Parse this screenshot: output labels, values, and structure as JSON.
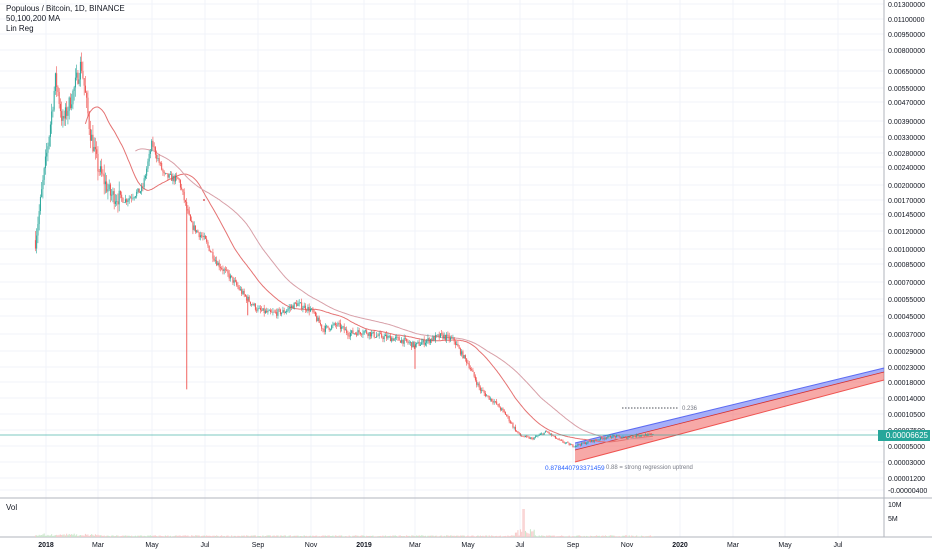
{
  "header": {
    "symbol": "Populous / Bitcoin, 1D, BINANCE",
    "indicator_ma": "50,100,200 MA",
    "indicator_linreg": "Lin Reg"
  },
  "volume_pane": {
    "label": "Vol",
    "scale_top": "10M",
    "scale_mid": "5M"
  },
  "current_price": "0.00006625",
  "colors": {
    "up": "#26a69a",
    "down": "#ef5350",
    "ma50": "#e57373",
    "ma100": "#d8a0a8",
    "reg_upper": "#5c6bf2",
    "reg_lower": "#ef5350",
    "price_tag": "#26a69a"
  },
  "chart_data": {
    "type": "candlestick",
    "title": "Populous / Bitcoin, 1D, BINANCE",
    "y_scale": "log",
    "y_ticks": [
      "0.01300000",
      "0.01100000",
      "0.00950000",
      "0.00800000",
      "0.00650000",
      "0.00550000",
      "0.00470000",
      "0.00390000",
      "0.00330000",
      "0.00280000",
      "0.00240000",
      "0.00200000",
      "0.00170000",
      "0.00145000",
      "0.00120000",
      "0.00100000",
      "0.00085000",
      "0.00070000",
      "0.00055000",
      "0.00045000",
      "0.00037000",
      "0.00029000",
      "0.00023000",
      "0.00018000",
      "0.00014000",
      "0.00010500",
      "0.00007500",
      "0.00005000",
      "0.00003000",
      "0.00001200",
      "-0.00000400"
    ],
    "x_ticks": [
      "2018",
      "Mar",
      "May",
      "Jul",
      "Sep",
      "Nov",
      "2019",
      "Mar",
      "May",
      "Jul",
      "Sep",
      "Nov",
      "2020",
      "Mar",
      "May",
      "Jul"
    ],
    "price_path": [
      [
        "2017-12-20",
        0.0011
      ],
      [
        "2018-01-05",
        0.0035
      ],
      [
        "2018-01-12",
        0.006
      ],
      [
        "2018-01-20",
        0.0038
      ],
      [
        "2018-02-01",
        0.0052
      ],
      [
        "2018-02-10",
        0.007
      ],
      [
        "2018-02-20",
        0.0035
      ],
      [
        "2018-03-01",
        0.0024
      ],
      [
        "2018-03-15",
        0.0018
      ],
      [
        "2018-04-01",
        0.0017
      ],
      [
        "2018-04-20",
        0.0019
      ],
      [
        "2018-05-01",
        0.0031
      ],
      [
        "2018-05-15",
        0.0022
      ],
      [
        "2018-06-01",
        0.0021
      ],
      [
        "2018-06-15",
        0.0013
      ],
      [
        "2018-07-01",
        0.0011
      ],
      [
        "2018-07-15",
        0.00085
      ],
      [
        "2018-08-01",
        0.0007
      ],
      [
        "2018-08-15",
        0.00058
      ],
      [
        "2018-09-01",
        0.00048
      ],
      [
        "2018-09-15",
        0.00046
      ],
      [
        "2018-10-01",
        0.00047
      ],
      [
        "2018-10-15",
        0.00052
      ],
      [
        "2018-11-01",
        0.00048
      ],
      [
        "2018-11-15",
        0.00038
      ],
      [
        "2018-12-01",
        0.0004
      ],
      [
        "2018-12-15",
        0.00036
      ],
      [
        "2019-01-01",
        0.00037
      ],
      [
        "2019-01-15",
        0.00035
      ],
      [
        "2019-02-01",
        0.00034
      ],
      [
        "2019-02-15",
        0.00033
      ],
      [
        "2019-03-01",
        0.00031
      ],
      [
        "2019-03-15",
        0.00033
      ],
      [
        "2019-04-01",
        0.00035
      ],
      [
        "2019-04-15",
        0.00033
      ],
      [
        "2019-05-01",
        0.00024
      ],
      [
        "2019-05-15",
        0.00016
      ],
      [
        "2019-06-01",
        0.00013
      ],
      [
        "2019-06-15",
        0.0001
      ],
      [
        "2019-07-01",
        6.5e-05
      ],
      [
        "2019-07-15",
        6e-05
      ],
      [
        "2019-08-01",
        7.2e-05
      ],
      [
        "2019-08-15",
        5.8e-05
      ],
      [
        "2019-09-01",
        5e-05
      ],
      [
        "2019-09-15",
        5.4e-05
      ],
      [
        "2019-10-01",
        6e-05
      ],
      [
        "2019-10-15",
        6.4e-05
      ],
      [
        "2019-11-01",
        6.2e-05
      ],
      [
        "2019-11-15",
        6.6e-05
      ],
      [
        "2019-12-01",
        6.625e-05
      ]
    ],
    "spikes_down": [
      [
        "2018-06-10",
        0.00016
      ],
      [
        "2018-08-20",
        0.00045
      ],
      [
        "2019-03-01",
        0.00022
      ]
    ],
    "annotations": {
      "fib_label": "0.236",
      "pearson_value": "0.878440793371459",
      "regression_note": "0.88 = strong regression uptrend"
    }
  }
}
